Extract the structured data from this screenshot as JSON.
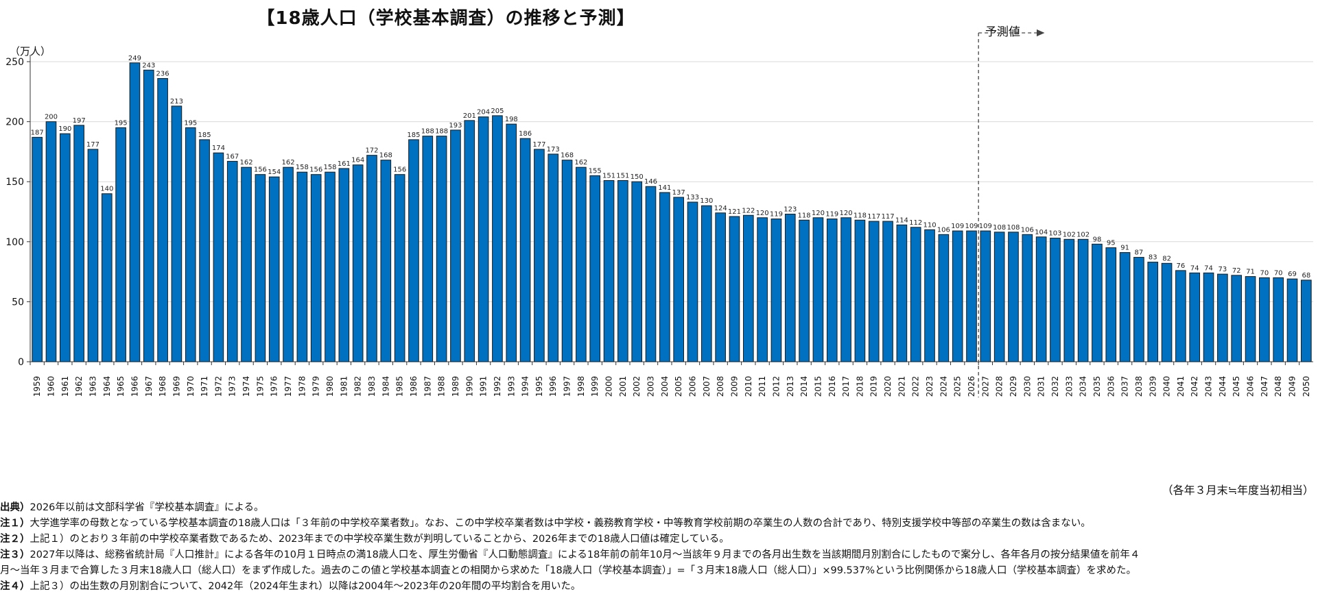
{
  "notes": [
    {
      "label": "出典）",
      "text": "2026年以前は文部科学省『学校基本調査』による。"
    },
    {
      "label": "注１）",
      "text": "大学進学率の母数となっている学校基本調査の18歳人口は「３年前の中学校卒業者数」。なお、この中学校卒業者数は中学校・義務教育学校・中等教育学校前期の卒業生の人数の合計であり、特別支援学校中等部の卒業生の数は含まない。"
    },
    {
      "label": "注２）",
      "text": "上記１）のとおり３年前の中学校卒業者数であるため、2023年までの中学校卒業生数が判明していることから、2026年までの18歳人口値は確定している。"
    },
    {
      "label": "注３）",
      "text": "2027年以降は、総務省統計局『人口推計』による各年の10月１日時点の満18歳人口を、厚生労働省『人口動態調査』による18年前の前年10月～当該年９月までの各月出生数を当該期間月別割合にしたもので案分し、各年各月の按分結果値を前年４"
    },
    {
      "label": "",
      "text": "月～当年３月まで合算した３月末18歳人口（総人口）をまず作成した。過去のこの値と学校基本調査との相関から求めた「18歳人口（学校基本調査）」=「３月末18歳人口（総人口）」×99.537%という比例関係から18歳人口（学校基本調査）を求めた。"
    },
    {
      "label": "注４）",
      "text": "上記３）の出生数の月別割合について、2042年（2024年生まれ）以降は2004年～2023年の20年間の平均割合を用いた。"
    }
  ],
  "chart_data": {
    "type": "bar",
    "title": "【18歳人口（学校基本調査）の推移と予測】",
    "ylabel": "（万人）",
    "xlabel": "",
    "axis_note": "（各年３月末≒年度当初相当）",
    "forecast_label": "予測値",
    "forecast_start": "2027",
    "ylim": [
      0,
      250
    ],
    "yticks": [
      0,
      50,
      100,
      150,
      200,
      250
    ],
    "grid": true,
    "bar_color": "#0070c0",
    "categories": [
      "1959",
      "1960",
      "1961",
      "1962",
      "1963",
      "1964",
      "1965",
      "1966",
      "1967",
      "1968",
      "1969",
      "1970",
      "1971",
      "1972",
      "1973",
      "1974",
      "1975",
      "1976",
      "1977",
      "1978",
      "1979",
      "1980",
      "1981",
      "1982",
      "1983",
      "1984",
      "1985",
      "1986",
      "1987",
      "1988",
      "1989",
      "1990",
      "1991",
      "1992",
      "1993",
      "1994",
      "1995",
      "1996",
      "1997",
      "1998",
      "1999",
      "2000",
      "2001",
      "2002",
      "2003",
      "2004",
      "2005",
      "2006",
      "2007",
      "2008",
      "2009",
      "2010",
      "2011",
      "2012",
      "2013",
      "2014",
      "2015",
      "2016",
      "2017",
      "2018",
      "2019",
      "2020",
      "2021",
      "2022",
      "2023",
      "2024",
      "2025",
      "2026",
      "2027",
      "2028",
      "2029",
      "2030",
      "2031",
      "2032",
      "2033",
      "2034",
      "2035",
      "2036",
      "2037",
      "2038",
      "2039",
      "2040",
      "2041",
      "2042",
      "2043",
      "2044",
      "2045",
      "2046",
      "2047",
      "2048",
      "2049",
      "2050"
    ],
    "values": [
      187,
      200,
      190,
      197,
      177,
      140,
      195,
      249,
      243,
      236,
      213,
      195,
      185,
      174,
      167,
      162,
      156,
      154,
      162,
      158,
      156,
      158,
      161,
      164,
      172,
      168,
      156,
      185,
      188,
      188,
      193,
      201,
      204,
      205,
      198,
      186,
      177,
      173,
      168,
      162,
      155,
      151,
      151,
      150,
      146,
      141,
      137,
      133,
      130,
      124,
      121,
      122,
      120,
      119,
      123,
      118,
      120,
      119,
      120,
      118,
      117,
      117,
      114,
      112,
      110,
      106,
      109,
      109,
      109,
      108,
      108,
      106,
      104,
      103,
      102,
      102,
      98,
      95,
      91,
      87,
      83,
      82,
      76,
      74,
      74,
      73,
      72,
      71,
      70,
      70,
      69,
      68
    ]
  }
}
